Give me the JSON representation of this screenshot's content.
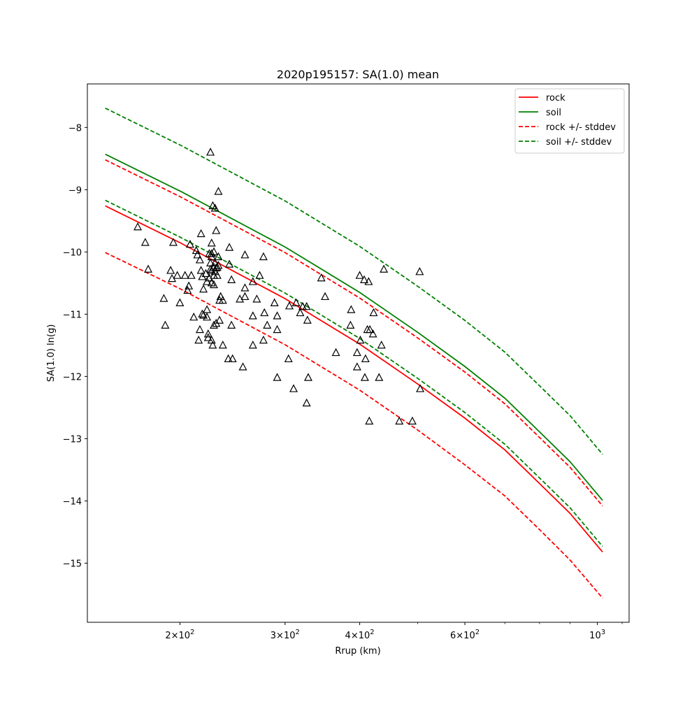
{
  "chart_data": {
    "type": "line",
    "title": "2020p195157: SA(1.0) mean",
    "xlabel": "Rrup (km)",
    "ylabel": "SA(1.0) ln(g)",
    "xscale": "log",
    "xlim": [
      140,
      1130
    ],
    "ylim": [
      -15.95,
      -7.3
    ],
    "grid": false,
    "legend_position": "top-right",
    "xticks": [
      {
        "value": 200,
        "base": "2",
        "exp": "2"
      },
      {
        "value": 300,
        "base": "3",
        "exp": "2"
      },
      {
        "value": 400,
        "base": "4",
        "exp": "2"
      },
      {
        "value": 600,
        "base": "6",
        "exp": "2"
      },
      {
        "value": 1000,
        "base": "10",
        "exp": "3"
      }
    ],
    "yticks": [
      -8,
      -9,
      -10,
      -11,
      -12,
      -13,
      -14,
      -15
    ],
    "ytick_labels": [
      "−8",
      "−9",
      "−10",
      "−11",
      "−12",
      "−13",
      "−14",
      "−15"
    ],
    "series": [
      {
        "name": "rock",
        "color": "#ff0000",
        "style": "solid",
        "marker": "none",
        "x": [
          150,
          200,
          300,
          400,
          500,
          600,
          700,
          800,
          900,
          1020
        ],
        "y": [
          -9.26,
          -9.85,
          -10.75,
          -11.48,
          -12.12,
          -12.67,
          -13.18,
          -13.72,
          -14.2,
          -14.82
        ]
      },
      {
        "name": "soil",
        "color": "#008000",
        "style": "solid",
        "marker": "none",
        "x": [
          150,
          200,
          300,
          400,
          500,
          600,
          700,
          800,
          900,
          1020
        ],
        "y": [
          -8.43,
          -9.02,
          -9.92,
          -10.65,
          -11.29,
          -11.84,
          -12.35,
          -12.89,
          -13.37,
          -13.99
        ]
      },
      {
        "name": "rock +/- stddev",
        "color": "#ff0000",
        "style": "dashed",
        "marker": "none",
        "x": [
          150,
          200,
          300,
          400,
          500,
          600,
          700,
          800,
          900,
          1020
        ],
        "y": [
          -8.52,
          -9.11,
          -10.01,
          -10.74,
          -11.38,
          -11.93,
          -12.44,
          -12.98,
          -13.46,
          -14.08
        ]
      },
      {
        "name": "",
        "color": "#ff0000",
        "style": "dashed",
        "marker": "none",
        "x": [
          150,
          200,
          300,
          400,
          500,
          600,
          700,
          800,
          900,
          1020
        ],
        "y": [
          -10.01,
          -10.59,
          -11.49,
          -12.22,
          -12.86,
          -13.42,
          -13.92,
          -14.46,
          -14.95,
          -15.56
        ]
      },
      {
        "name": "soil +/- stddev",
        "color": "#008000",
        "style": "dashed",
        "marker": "none",
        "x": [
          150,
          200,
          300,
          400,
          500,
          600,
          700,
          800,
          900,
          1020
        ],
        "y": [
          -7.69,
          -8.28,
          -9.18,
          -9.91,
          -10.55,
          -11.1,
          -11.61,
          -12.15,
          -12.63,
          -13.25
        ]
      },
      {
        "name": "",
        "color": "#008000",
        "style": "dashed",
        "marker": "none",
        "x": [
          150,
          200,
          300,
          400,
          500,
          600,
          700,
          800,
          900,
          1020
        ],
        "y": [
          -9.17,
          -9.76,
          -10.66,
          -11.39,
          -12.03,
          -12.58,
          -13.09,
          -13.63,
          -14.11,
          -14.73
        ]
      },
      {
        "name": "",
        "color": "#000000",
        "style": "none",
        "marker": "triangle",
        "points": [
          [
            170,
            -9.6
          ],
          [
            175,
            -9.85
          ],
          [
            177,
            -10.28
          ],
          [
            188,
            -10.75
          ],
          [
            189,
            -11.18
          ],
          [
            193,
            -10.3
          ],
          [
            194,
            -10.43
          ],
          [
            195,
            -9.85
          ],
          [
            198,
            -10.38
          ],
          [
            200,
            -10.82
          ],
          [
            204,
            -10.38
          ],
          [
            206,
            -10.62
          ],
          [
            207,
            -10.55
          ],
          [
            208,
            -9.88
          ],
          [
            209,
            -10.38
          ],
          [
            211,
            -11.05
          ],
          [
            213,
            -9.98
          ],
          [
            214,
            -10.05
          ],
          [
            215,
            -11.42
          ],
          [
            216,
            -11.25
          ],
          [
            216,
            -10.13
          ],
          [
            217,
            -9.71
          ],
          [
            217,
            -10.3
          ],
          [
            218,
            -10.4
          ],
          [
            218,
            -11.0
          ],
          [
            219,
            -10.6
          ],
          [
            219,
            -11.02
          ],
          [
            221,
            -10.35
          ],
          [
            222,
            -11.05
          ],
          [
            222,
            -10.48
          ],
          [
            222,
            -10.93
          ],
          [
            223,
            -11.38
          ],
          [
            223,
            -11.32
          ],
          [
            224,
            -10.03
          ],
          [
            224,
            -10.42
          ],
          [
            225,
            -8.4
          ],
          [
            225,
            -10.28
          ],
          [
            225,
            -10.18
          ],
          [
            226,
            -10.03
          ],
          [
            226,
            -10.08
          ],
          [
            226,
            -10.5
          ],
          [
            226,
            -11.42
          ],
          [
            226,
            -10.3
          ],
          [
            226,
            -9.86
          ],
          [
            227,
            -11.5
          ],
          [
            227,
            -9.26
          ],
          [
            228,
            -11.18
          ],
          [
            228,
            -10.25
          ],
          [
            228,
            -10.0
          ],
          [
            228,
            -10.38
          ],
          [
            228,
            -10.53
          ],
          [
            229,
            -10.18
          ],
          [
            229,
            -9.3
          ],
          [
            229,
            -10.32
          ],
          [
            230,
            -10.26
          ],
          [
            230,
            -9.66
          ],
          [
            230,
            -11.15
          ],
          [
            231,
            -10.25
          ],
          [
            231,
            -10.38
          ],
          [
            232,
            -9.03
          ],
          [
            232,
            -10.22
          ],
          [
            232,
            -10.08
          ],
          [
            233,
            -10.78
          ],
          [
            233,
            -11.1
          ],
          [
            234,
            -10.72
          ],
          [
            236,
            -11.5
          ],
          [
            236,
            -10.78
          ],
          [
            241,
            -11.72
          ],
          [
            242,
            -10.2
          ],
          [
            242,
            -9.93
          ],
          [
            244,
            -11.18
          ],
          [
            244,
            -10.45
          ],
          [
            245,
            -11.72
          ],
          [
            252,
            -10.76
          ],
          [
            255,
            -11.85
          ],
          [
            257,
            -10.58
          ],
          [
            257,
            -10.72
          ],
          [
            257,
            -10.05
          ],
          [
            265,
            -10.48
          ],
          [
            265,
            -11.03
          ],
          [
            265,
            -11.5
          ],
          [
            269,
            -10.76
          ],
          [
            272,
            -10.38
          ],
          [
            276,
            -10.08
          ],
          [
            276,
            -11.42
          ],
          [
            277,
            -10.98
          ],
          [
            280,
            -11.18
          ],
          [
            288,
            -10.82
          ],
          [
            291,
            -11.25
          ],
          [
            291,
            -11.03
          ],
          [
            291,
            -12.02
          ],
          [
            304,
            -11.72
          ],
          [
            305,
            -10.87
          ],
          [
            310,
            -12.2
          ],
          [
            313,
            -10.82
          ],
          [
            318,
            -10.98
          ],
          [
            321,
            -10.88
          ],
          [
            326,
            -10.88
          ],
          [
            326,
            -12.43
          ],
          [
            327,
            -11.1
          ],
          [
            328,
            -12.02
          ],
          [
            345,
            -10.42
          ],
          [
            350,
            -10.72
          ],
          [
            365,
            -11.62
          ],
          [
            386,
            -11.18
          ],
          [
            387,
            -10.93
          ],
          [
            396,
            -11.62
          ],
          [
            396,
            -11.85
          ],
          [
            400,
            -10.38
          ],
          [
            401,
            -11.42
          ],
          [
            407,
            -10.45
          ],
          [
            408,
            -12.02
          ],
          [
            409,
            -11.72
          ],
          [
            412,
            -11.25
          ],
          [
            414,
            -10.48
          ],
          [
            415,
            -12.72
          ],
          [
            416,
            -11.25
          ],
          [
            421,
            -11.32
          ],
          [
            422,
            -10.98
          ],
          [
            431,
            -12.02
          ],
          [
            435,
            -11.5
          ],
          [
            439,
            -10.28
          ],
          [
            466,
            -12.72
          ],
          [
            490,
            -12.72
          ],
          [
            504,
            -10.32
          ],
          [
            505,
            -12.2
          ]
        ]
      }
    ]
  }
}
